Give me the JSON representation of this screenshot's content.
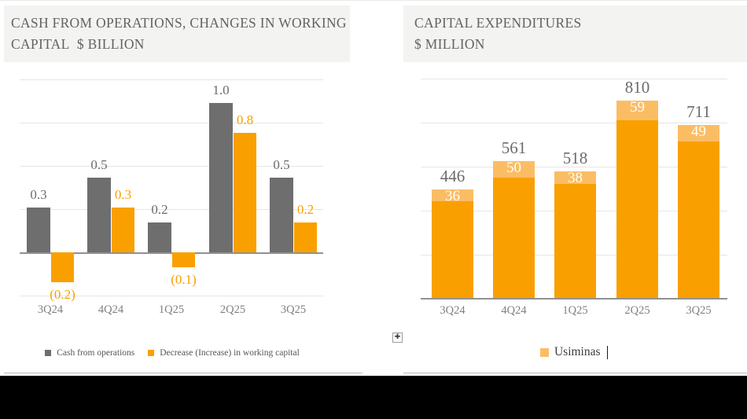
{
  "panels": {
    "left": {
      "title_line1": "CASH FROM OPERATIONS, CHANGES IN WORKING",
      "title_line2": "CAPITAL  $ BILLION"
    },
    "right": {
      "title_line1": "CAPITAL EXPENDITURES",
      "title_line2": "$ MILLION"
    }
  },
  "chart_data": [
    {
      "id": "cash-from-operations-working-capital",
      "type": "bar",
      "title": "CASH FROM OPERATIONS, CHANGES IN WORKING CAPITAL $ BILLION",
      "unit": "$ billion",
      "categories": [
        "3Q24",
        "4Q24",
        "1Q25",
        "2Q25",
        "3Q25"
      ],
      "series": [
        {
          "name": "Cash from operations",
          "color": "#6e6e6e",
          "values": [
            0.3,
            0.5,
            0.2,
            1.0,
            0.5
          ],
          "labels": [
            "0.3",
            "0.5",
            "0.2",
            "1.0",
            "0.5"
          ]
        },
        {
          "name": "Decrease (Increase) in working capital",
          "color": "#f9a000",
          "values": [
            -0.2,
            0.3,
            -0.1,
            0.8,
            0.2
          ],
          "labels": [
            "(0.2)",
            "0.3",
            "(0.1)",
            "0.8",
            "0.2"
          ]
        }
      ],
      "grid": true,
      "legend_position": "bottom",
      "ylim": [
        -0.3,
        1.2
      ]
    },
    {
      "id": "capital-expenditures",
      "type": "stacked-bar",
      "title": "CAPITAL EXPENDITURES $ MILLION",
      "unit": "$ million",
      "categories": [
        "3Q24",
        "4Q24",
        "1Q25",
        "2Q25",
        "3Q25"
      ],
      "totals": [
        446,
        561,
        518,
        810,
        711
      ],
      "total_labels": [
        "446",
        "561",
        "518",
        "810",
        "711"
      ],
      "base_color": "#f9a000",
      "top_segment": {
        "name": "Usiminas",
        "color": "#fbbd64",
        "values": [
          36,
          50,
          38,
          59,
          49
        ],
        "labels": [
          "36",
          "50",
          "38",
          "59",
          "49"
        ]
      },
      "grid": true,
      "legend_position": "bottom",
      "ylim": [
        0,
        900
      ]
    }
  ],
  "icons": {
    "move_handle": "✚"
  },
  "colors": {
    "gray_bar": "#6e6e6e",
    "orange": "#f9a000",
    "light_orange": "#fbbd64",
    "title_text": "#636363",
    "axis_text": "#7f7f7f",
    "gridline": "#e5e5e5",
    "baseline": "#919191",
    "header_band": "#f3f3f2",
    "footer_bar": "#000000"
  }
}
